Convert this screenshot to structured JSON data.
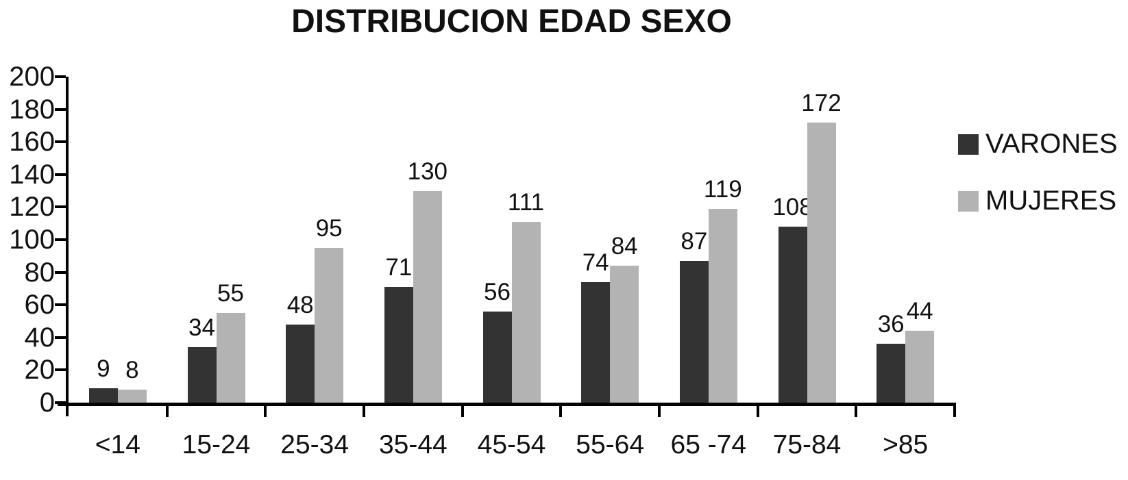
{
  "title": "DISTRIBUCION EDAD SEXO",
  "colors": {
    "varones": "#333333",
    "mujeres": "#b3b3b3",
    "axis": "#000000",
    "background": "#ffffff",
    "text": "#111111"
  },
  "legend": {
    "position": "right",
    "items": [
      {
        "label": "VARONES",
        "color": "#333333"
      },
      {
        "label": "MUJERES",
        "color": "#b3b3b3"
      }
    ]
  },
  "chart_data": {
    "type": "bar",
    "title": "DISTRIBUCION EDAD SEXO",
    "categories": [
      "<14",
      "15-24",
      "25-34",
      "35-44",
      "45-54",
      "55-64",
      "65 -74",
      "75-84",
      ">85"
    ],
    "series": [
      {
        "name": "VARONES",
        "color": "#333333",
        "values": [
          9,
          34,
          48,
          71,
          56,
          74,
          87,
          108,
          36
        ]
      },
      {
        "name": "MUJERES",
        "color": "#b3b3b3",
        "values": [
          8,
          55,
          95,
          130,
          111,
          84,
          119,
          172,
          44
        ]
      }
    ],
    "xlabel": "",
    "ylabel": "",
    "ylim": [
      0,
      200
    ],
    "ytick_step": 20,
    "yticks": [
      0,
      20,
      40,
      60,
      80,
      100,
      120,
      140,
      160,
      180,
      200
    ],
    "grid": false,
    "legend_position": "right",
    "data_labels": true
  }
}
